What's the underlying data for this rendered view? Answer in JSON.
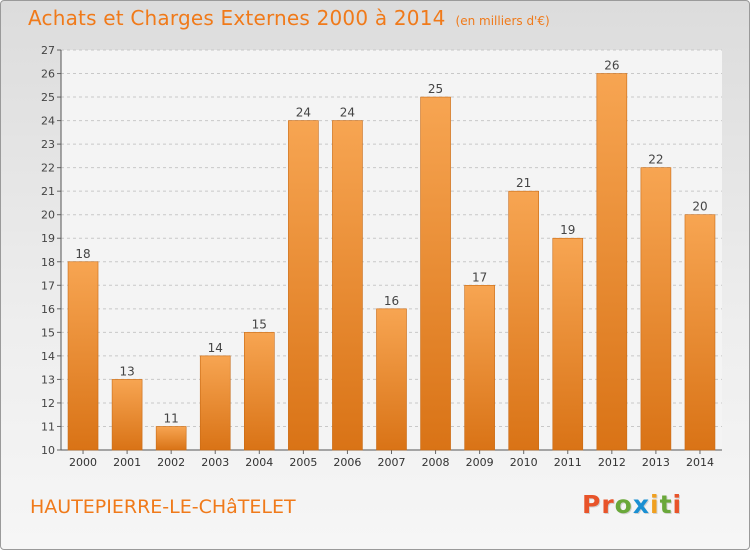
{
  "header": {
    "title": "Achats et Charges Externes 2000 à 2014",
    "subtitle": "(en milliers d'€)"
  },
  "footer": {
    "location": "HAUTEPIERRE-LE-CHâTELET",
    "logo_text": "Proxiti"
  },
  "colors": {
    "bar_top": "#f7a552",
    "bar_bottom": "#d97316",
    "accent": "#f07a1a",
    "grid": "#c8c8c8",
    "logo_letters": [
      "#e8542a",
      "#e8542a",
      "#6aa83a",
      "#1a8fd2",
      "#f0a020",
      "#6aa83a",
      "#e8542a"
    ]
  },
  "chart_data": {
    "type": "bar",
    "title": "Achats et Charges Externes 2000 à 2014",
    "subtitle": "(en milliers d'€)",
    "xlabel": "",
    "ylabel": "",
    "categories": [
      "2000",
      "2001",
      "2002",
      "2003",
      "2004",
      "2005",
      "2006",
      "2007",
      "2008",
      "2009",
      "2010",
      "2011",
      "2012",
      "2013",
      "2014"
    ],
    "values": [
      18,
      13,
      11,
      14,
      15,
      24,
      24,
      16,
      25,
      17,
      21,
      19,
      26,
      22,
      20
    ],
    "ylim": [
      10,
      27
    ],
    "yticks": [
      10,
      11,
      12,
      13,
      14,
      15,
      16,
      17,
      18,
      19,
      20,
      21,
      22,
      23,
      24,
      25,
      26,
      27
    ],
    "grid": true,
    "data_labels": true
  }
}
